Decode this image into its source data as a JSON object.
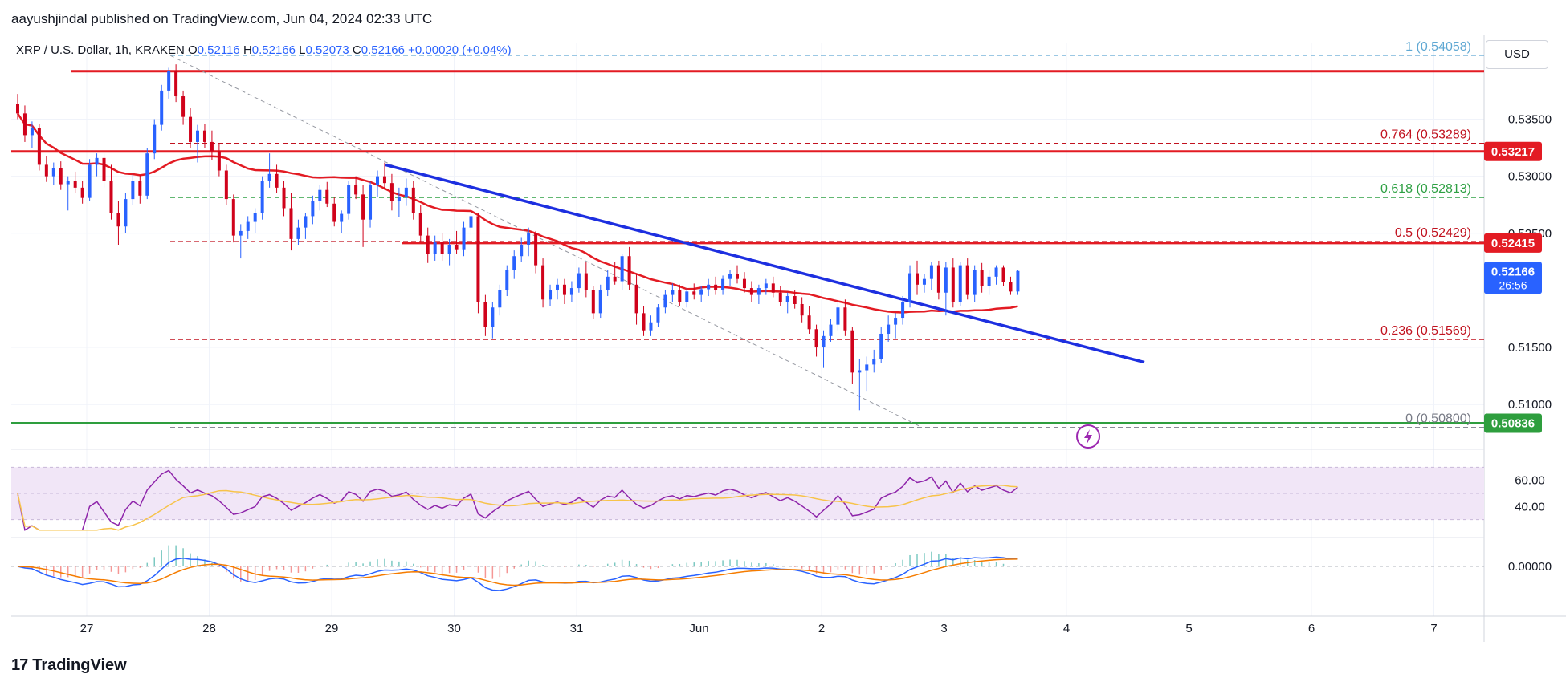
{
  "header": {
    "published": "aayushjindal published on TradingView.com, Jun 04, 2024 02:33 UTC",
    "symbol": "XRP / U.S. Dollar, 1h, KRAKEN",
    "ohlc": {
      "o_label": "O",
      "o": "0.52116",
      "h_label": "H",
      "h": "0.52166",
      "l_label": "L",
      "l": "0.52073",
      "c_label": "C",
      "c": "0.52166",
      "change": "+0.00020 (+0.04%)"
    }
  },
  "currency_button": "USD",
  "brand": {
    "logo": "17",
    "name": "TradingView"
  },
  "colors": {
    "up": "#2962ff",
    "down": "#d0021b",
    "ma": "#e31b23",
    "trendline": "#1d2fe0",
    "resistance": "#e31b23",
    "support": "#2e9e3e",
    "fib_red": "#c1121f",
    "fib_green": "#2ea043",
    "fib_blue": "#5fa8d3",
    "rsi_line": "#8e24aa",
    "rsi_ma": "#f7c34a",
    "rsi_band": "#f1e6f7",
    "macd_line": "#2962ff",
    "macd_signal": "#f57c00"
  },
  "chart_data": {
    "type": "candlestick",
    "interval": "1h",
    "price_axis": {
      "min": 0.5065,
      "max": 0.5415,
      "ticks": [
        "0.51000",
        "0.51500",
        "0.52500",
        "0.53000",
        "0.53500"
      ]
    },
    "time_axis": {
      "labels": [
        "27",
        "28",
        "29",
        "30",
        "31",
        "Jun",
        "2",
        "3",
        "4",
        "5",
        "6",
        "7"
      ]
    },
    "candles": [
      [
        0.5363,
        0.5372,
        0.535,
        0.5355
      ],
      [
        0.5355,
        0.5362,
        0.533,
        0.5336
      ],
      [
        0.5336,
        0.5348,
        0.5325,
        0.5342
      ],
      [
        0.5342,
        0.5346,
        0.5305,
        0.531
      ],
      [
        0.531,
        0.5318,
        0.5295,
        0.53
      ],
      [
        0.53,
        0.5312,
        0.5292,
        0.5307
      ],
      [
        0.5307,
        0.5313,
        0.5288,
        0.5293
      ],
      [
        0.5293,
        0.53,
        0.527,
        0.5296
      ],
      [
        0.5296,
        0.5304,
        0.5285,
        0.529
      ],
      [
        0.529,
        0.5296,
        0.5276,
        0.5281
      ],
      [
        0.5281,
        0.5315,
        0.5278,
        0.531
      ],
      [
        0.531,
        0.532,
        0.53,
        0.5316
      ],
      [
        0.5316,
        0.532,
        0.529,
        0.5296
      ],
      [
        0.5296,
        0.531,
        0.5262,
        0.5268
      ],
      [
        0.5268,
        0.5278,
        0.524,
        0.5256
      ],
      [
        0.5256,
        0.5285,
        0.525,
        0.528
      ],
      [
        0.528,
        0.5302,
        0.5275,
        0.5296
      ],
      [
        0.5296,
        0.5301,
        0.5276,
        0.5283
      ],
      [
        0.5283,
        0.5325,
        0.528,
        0.532
      ],
      [
        0.532,
        0.535,
        0.5315,
        0.5345
      ],
      [
        0.5345,
        0.538,
        0.534,
        0.5375
      ],
      [
        0.5375,
        0.5395,
        0.5368,
        0.5392
      ],
      [
        0.5392,
        0.5398,
        0.5365,
        0.537
      ],
      [
        0.537,
        0.5375,
        0.5345,
        0.5352
      ],
      [
        0.5352,
        0.536,
        0.5325,
        0.533
      ],
      [
        0.533,
        0.5345,
        0.5312,
        0.534
      ],
      [
        0.534,
        0.5346,
        0.5325,
        0.533
      ],
      [
        0.533,
        0.534,
        0.5314,
        0.5322
      ],
      [
        0.5322,
        0.5328,
        0.53,
        0.5305
      ],
      [
        0.5305,
        0.531,
        0.5275,
        0.528
      ],
      [
        0.528,
        0.5284,
        0.5242,
        0.5248
      ],
      [
        0.5248,
        0.5258,
        0.5228,
        0.5252
      ],
      [
        0.5252,
        0.5265,
        0.5245,
        0.526
      ],
      [
        0.526,
        0.5272,
        0.525,
        0.5268
      ],
      [
        0.5268,
        0.53,
        0.5262,
        0.5296
      ],
      [
        0.5296,
        0.532,
        0.529,
        0.5302
      ],
      [
        0.5302,
        0.531,
        0.5285,
        0.529
      ],
      [
        0.529,
        0.5296,
        0.5265,
        0.5272
      ],
      [
        0.5272,
        0.5285,
        0.5235,
        0.5245
      ],
      [
        0.5245,
        0.5262,
        0.524,
        0.5255
      ],
      [
        0.5255,
        0.5268,
        0.5245,
        0.5265
      ],
      [
        0.5265,
        0.5283,
        0.5258,
        0.5278
      ],
      [
        0.5278,
        0.5292,
        0.527,
        0.5288
      ],
      [
        0.5288,
        0.5295,
        0.5273,
        0.5276
      ],
      [
        0.5276,
        0.5282,
        0.5256,
        0.526
      ],
      [
        0.526,
        0.527,
        0.525,
        0.5267
      ],
      [
        0.5267,
        0.5296,
        0.5262,
        0.5292
      ],
      [
        0.5292,
        0.53,
        0.528,
        0.5284
      ],
      [
        0.5284,
        0.5292,
        0.5238,
        0.5262
      ],
      [
        0.5262,
        0.5295,
        0.5255,
        0.5292
      ],
      [
        0.5292,
        0.5305,
        0.5282,
        0.53
      ],
      [
        0.53,
        0.5312,
        0.5288,
        0.5294
      ],
      [
        0.5294,
        0.5302,
        0.527,
        0.5278
      ],
      [
        0.5278,
        0.529,
        0.5264,
        0.5282
      ],
      [
        0.5282,
        0.5298,
        0.5274,
        0.529
      ],
      [
        0.529,
        0.5296,
        0.5262,
        0.5268
      ],
      [
        0.5268,
        0.5275,
        0.5242,
        0.5248
      ],
      [
        0.5248,
        0.5255,
        0.5224,
        0.5232
      ],
      [
        0.5232,
        0.5248,
        0.5226,
        0.5242
      ],
      [
        0.5242,
        0.525,
        0.5226,
        0.5232
      ],
      [
        0.5232,
        0.5245,
        0.5222,
        0.524
      ],
      [
        0.524,
        0.5252,
        0.5232,
        0.5236
      ],
      [
        0.5236,
        0.526,
        0.523,
        0.5255
      ],
      [
        0.5255,
        0.527,
        0.5248,
        0.5265
      ],
      [
        0.5265,
        0.5268,
        0.518,
        0.519
      ],
      [
        0.519,
        0.5196,
        0.516,
        0.5168
      ],
      [
        0.5168,
        0.519,
        0.5158,
        0.5185
      ],
      [
        0.5185,
        0.5205,
        0.5178,
        0.52
      ],
      [
        0.52,
        0.5222,
        0.5195,
        0.5218
      ],
      [
        0.5218,
        0.5235,
        0.521,
        0.523
      ],
      [
        0.523,
        0.5246,
        0.5225,
        0.524
      ],
      [
        0.524,
        0.5255,
        0.523,
        0.525
      ],
      [
        0.525,
        0.5252,
        0.5215,
        0.5222
      ],
      [
        0.5222,
        0.5228,
        0.5185,
        0.5192
      ],
      [
        0.5192,
        0.5205,
        0.5186,
        0.52
      ],
      [
        0.52,
        0.521,
        0.5192,
        0.5205
      ],
      [
        0.5205,
        0.521,
        0.5188,
        0.5196
      ],
      [
        0.5196,
        0.5208,
        0.519,
        0.5202
      ],
      [
        0.5202,
        0.522,
        0.5198,
        0.5215
      ],
      [
        0.5215,
        0.5225,
        0.5194,
        0.52
      ],
      [
        0.52,
        0.5204,
        0.5175,
        0.518
      ],
      [
        0.518,
        0.5205,
        0.5176,
        0.52
      ],
      [
        0.52,
        0.5218,
        0.5195,
        0.5212
      ],
      [
        0.5212,
        0.5225,
        0.5205,
        0.5208
      ],
      [
        0.5208,
        0.5232,
        0.52,
        0.523
      ],
      [
        0.523,
        0.5238,
        0.52,
        0.5205
      ],
      [
        0.5205,
        0.5215,
        0.517,
        0.518
      ],
      [
        0.518,
        0.5186,
        0.516,
        0.5165
      ],
      [
        0.5165,
        0.5178,
        0.516,
        0.5172
      ],
      [
        0.5172,
        0.5188,
        0.5168,
        0.5185
      ],
      [
        0.5185,
        0.52,
        0.518,
        0.5196
      ],
      [
        0.5196,
        0.5206,
        0.519,
        0.52
      ],
      [
        0.52,
        0.5205,
        0.5186,
        0.519
      ],
      [
        0.519,
        0.5202,
        0.5185,
        0.5199
      ],
      [
        0.5199,
        0.5206,
        0.5192,
        0.5196
      ],
      [
        0.5196,
        0.5204,
        0.519,
        0.5201
      ],
      [
        0.5201,
        0.521,
        0.5195,
        0.5205
      ],
      [
        0.5205,
        0.5212,
        0.5196,
        0.52
      ],
      [
        0.52,
        0.5213,
        0.5196,
        0.521
      ],
      [
        0.521,
        0.5218,
        0.5204,
        0.5214
      ],
      [
        0.5214,
        0.5222,
        0.5206,
        0.521
      ],
      [
        0.521,
        0.5216,
        0.5198,
        0.5202
      ],
      [
        0.5202,
        0.5208,
        0.519,
        0.5196
      ],
      [
        0.5196,
        0.5205,
        0.5188,
        0.5202
      ],
      [
        0.5202,
        0.521,
        0.5196,
        0.5206
      ],
      [
        0.5206,
        0.5212,
        0.5194,
        0.5198
      ],
      [
        0.5198,
        0.5204,
        0.5186,
        0.519
      ],
      [
        0.519,
        0.5198,
        0.518,
        0.5195
      ],
      [
        0.5195,
        0.52,
        0.5184,
        0.5188
      ],
      [
        0.5188,
        0.5194,
        0.5172,
        0.5178
      ],
      [
        0.5178,
        0.5186,
        0.5162,
        0.5166
      ],
      [
        0.5166,
        0.517,
        0.5142,
        0.515
      ],
      [
        0.515,
        0.5165,
        0.5132,
        0.516
      ],
      [
        0.516,
        0.5175,
        0.5155,
        0.517
      ],
      [
        0.517,
        0.519,
        0.5165,
        0.5185
      ],
      [
        0.5185,
        0.5192,
        0.516,
        0.5165
      ],
      [
        0.5165,
        0.5168,
        0.5118,
        0.5128
      ],
      [
        0.5128,
        0.514,
        0.5095,
        0.513
      ],
      [
        0.513,
        0.5142,
        0.5112,
        0.5135
      ],
      [
        0.5135,
        0.5148,
        0.5128,
        0.514
      ],
      [
        0.514,
        0.5168,
        0.5136,
        0.5162
      ],
      [
        0.5162,
        0.5178,
        0.5155,
        0.517
      ],
      [
        0.517,
        0.518,
        0.5158,
        0.5176
      ],
      [
        0.5176,
        0.5195,
        0.517,
        0.519
      ],
      [
        0.519,
        0.5222,
        0.5185,
        0.5215
      ],
      [
        0.5215,
        0.5226,
        0.5196,
        0.5205
      ],
      [
        0.5205,
        0.5214,
        0.5198,
        0.521
      ],
      [
        0.521,
        0.5225,
        0.52,
        0.5222
      ],
      [
        0.5222,
        0.5226,
        0.5192,
        0.5198
      ],
      [
        0.5198,
        0.5225,
        0.5178,
        0.522
      ],
      [
        0.522,
        0.5228,
        0.5185,
        0.519
      ],
      [
        0.519,
        0.5225,
        0.5186,
        0.5222
      ],
      [
        0.5222,
        0.5228,
        0.5192,
        0.5196
      ],
      [
        0.5196,
        0.5222,
        0.519,
        0.5218
      ],
      [
        0.5218,
        0.5224,
        0.5198,
        0.5204
      ],
      [
        0.5204,
        0.5218,
        0.5196,
        0.5212
      ],
      [
        0.5212,
        0.5222,
        0.5205,
        0.522
      ],
      [
        0.522,
        0.5222,
        0.5204,
        0.5207
      ],
      [
        0.5207,
        0.5212,
        0.5196,
        0.5199
      ],
      [
        0.5199,
        0.5218,
        0.5196,
        0.5217
      ]
    ],
    "moving_average_visible": true,
    "levels": {
      "resistance_top": 0.5392,
      "resistance_mid": 0.53217,
      "resistance_low": 0.52415,
      "support": 0.50836
    },
    "fib_retracement": [
      {
        "ratio": "1",
        "value": "0.54058",
        "level": 0.54058,
        "color": "fib_blue"
      },
      {
        "ratio": "0.764",
        "value": "0.53289",
        "level": 0.53289,
        "color": "fib_red"
      },
      {
        "ratio": "0.618",
        "value": "0.52813",
        "level": 0.52813,
        "color": "fib_green"
      },
      {
        "ratio": "0.5",
        "value": "0.52429",
        "level": 0.52429,
        "color": "fib_red"
      },
      {
        "ratio": "0.236",
        "value": "0.51569",
        "level": 0.51569,
        "color": "fib_red"
      },
      {
        "ratio": "0",
        "value": "0.50800",
        "level": 0.508,
        "color": "fib_gray"
      }
    ],
    "trendline": {
      "start_price": 0.531,
      "end_price": 0.5137
    },
    "price_labels": [
      {
        "text": "0.53217",
        "price": 0.53217,
        "bg": "#e31b23"
      },
      {
        "text": "0.52415",
        "price": 0.52415,
        "bg": "#e31b23"
      },
      {
        "text": "0.52166",
        "sub": "26:56",
        "price": 0.52166,
        "bg": "#2962ff"
      },
      {
        "text": "0.50836",
        "price": 0.50836,
        "bg": "#2e9e3e"
      }
    ],
    "rsi": {
      "ticks": [
        "60.00",
        "40.00"
      ],
      "band": [
        30,
        70
      ],
      "range": [
        20,
        80
      ]
    },
    "macd": {
      "ticks": [
        "0.00000"
      ]
    }
  }
}
